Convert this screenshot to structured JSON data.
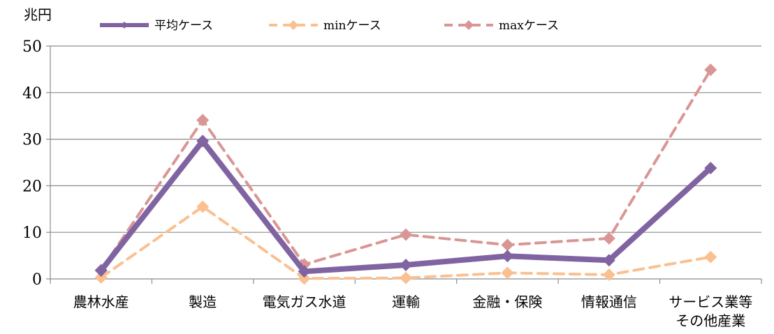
{
  "chart_data": {
    "type": "line",
    "ylabel": "兆円",
    "ylim": [
      0,
      50
    ],
    "yticks": [
      0,
      10,
      20,
      30,
      40,
      50
    ],
    "grid": true,
    "legend_position": "top",
    "categories": [
      "農林水産",
      "製造",
      "電気ガス水道",
      "運輸",
      "金融・保険",
      "情報通信",
      "サービス業等\nその他産業"
    ],
    "series": [
      {
        "name": "平均ケース",
        "color": "#8064a2",
        "style": "solid",
        "values": [
          1.8,
          29.6,
          1.6,
          3.0,
          4.9,
          4.0,
          23.8
        ]
      },
      {
        "name": "minケース",
        "color": "#fac090",
        "style": "dashed",
        "values": [
          0.3,
          15.5,
          0.1,
          0.2,
          1.3,
          0.9,
          4.7
        ]
      },
      {
        "name": "maxケース",
        "color": "#d99694",
        "style": "dashed",
        "values": [
          1.9,
          34.1,
          3.1,
          9.5,
          7.3,
          8.7,
          44.9
        ]
      }
    ]
  }
}
